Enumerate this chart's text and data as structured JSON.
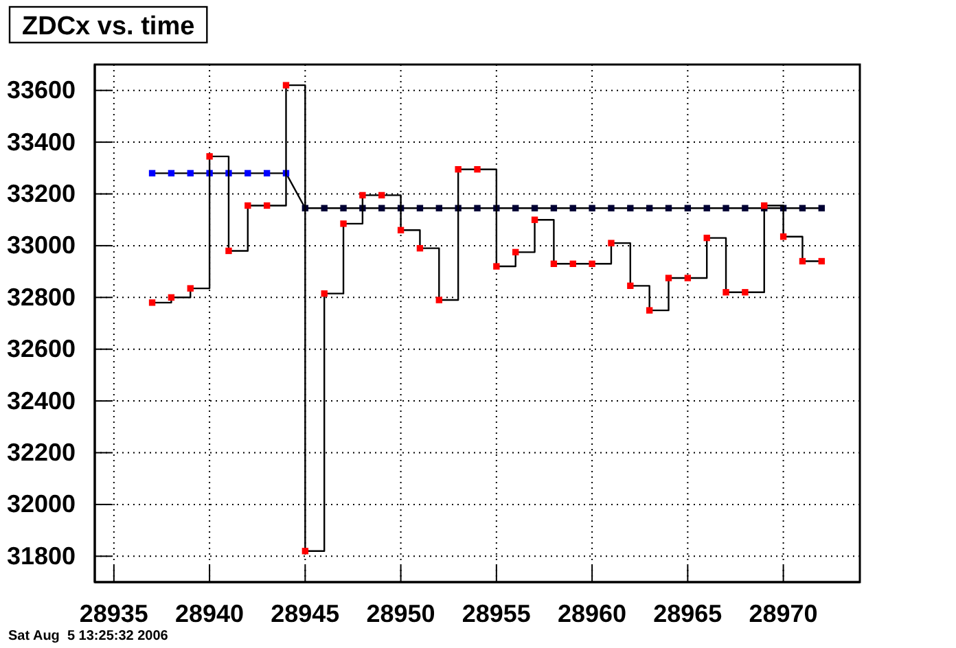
{
  "chart_data": {
    "type": "line",
    "title": "ZDCx vs. time",
    "annotations": [
      "Sat Aug  5 13:25:32 2006"
    ],
    "xlim": [
      28934,
      28974
    ],
    "xticks": [
      28935,
      28940,
      28945,
      28950,
      28955,
      28960,
      28965,
      28970
    ],
    "ylim": [
      31700,
      33700
    ],
    "yticks": [
      31800,
      32000,
      32200,
      32400,
      32600,
      32800,
      33000,
      33200,
      33400,
      33600
    ],
    "grid": true,
    "marker": "square",
    "series": [
      {
        "type": "step",
        "color": "#ff0000",
        "x": [
          28937,
          28938,
          28939,
          28940,
          28941,
          28942,
          28943,
          28944,
          28945,
          28946,
          28947,
          28948,
          28949,
          28950,
          28951,
          28952,
          28953,
          28954,
          28955,
          28956,
          28957,
          28958,
          28959,
          28960,
          28961,
          28962,
          28963,
          28964,
          28965,
          28966,
          28967,
          28968,
          28969,
          28970,
          28971,
          28972
        ],
        "values": [
          32780,
          32800,
          32835,
          33345,
          32980,
          33155,
          33155,
          33620,
          31820,
          32815,
          33085,
          33195,
          33195,
          33060,
          32990,
          32790,
          33295,
          33295,
          32920,
          32975,
          33100,
          32930,
          32930,
          32930,
          33010,
          32845,
          32750,
          32875,
          32875,
          33030,
          32820,
          32820,
          33155,
          33035,
          32940,
          32940
        ]
      },
      {
        "type": "line",
        "color": "#000000",
        "colors": [
          "#0000ff",
          "#0000ff",
          "#0000ff",
          "#0000ff",
          "#0000ff",
          "#0000ff",
          "#0000ff",
          "#0000ff",
          "#000033",
          "#000033",
          "#000033",
          "#000033",
          "#000033",
          "#000033",
          "#000033",
          "#000033",
          "#000033",
          "#000033",
          "#000033",
          "#000033",
          "#000033",
          "#000033",
          "#000033",
          "#000033",
          "#000033",
          "#000033",
          "#000033",
          "#000033",
          "#000033",
          "#000033",
          "#000033",
          "#000033",
          "#000033",
          "#000033",
          "#000033",
          "#000033"
        ],
        "x": [
          28937,
          28938,
          28939,
          28940,
          28941,
          28942,
          28943,
          28944,
          28945,
          28946,
          28947,
          28948,
          28949,
          28950,
          28951,
          28952,
          28953,
          28954,
          28955,
          28956,
          28957,
          28958,
          28959,
          28960,
          28961,
          28962,
          28963,
          28964,
          28965,
          28966,
          28967,
          28968,
          28969,
          28970,
          28971,
          28972
        ],
        "values": [
          33280,
          33280,
          33280,
          33280,
          33280,
          33280,
          33280,
          33280,
          33145,
          33145,
          33145,
          33145,
          33145,
          33145,
          33145,
          33145,
          33145,
          33145,
          33145,
          33145,
          33145,
          33145,
          33145,
          33145,
          33145,
          33145,
          33145,
          33145,
          33145,
          33145,
          33145,
          33145,
          33145,
          33145,
          33145,
          33145
        ]
      }
    ]
  }
}
